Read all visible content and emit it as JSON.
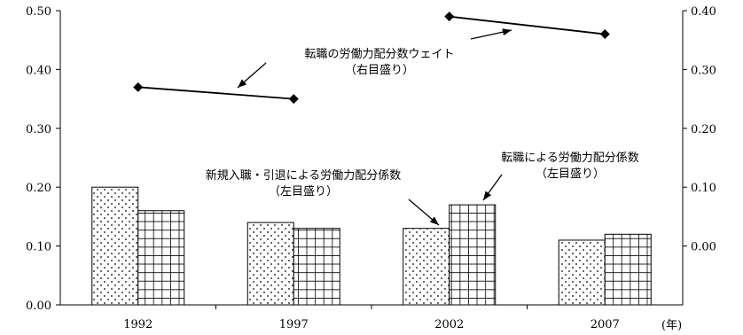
{
  "chart_data": {
    "type": "bar",
    "categories": [
      "1992",
      "1997",
      "2002",
      "2007"
    ],
    "x_unit_label": "(年)",
    "left_axis": {
      "ylim": [
        0,
        0.5
      ],
      "ticks": [
        "0.00",
        "0.10",
        "0.20",
        "0.30",
        "0.40",
        "0.50"
      ]
    },
    "right_axis": {
      "ylim": [
        -0.1,
        0.4
      ],
      "ticks": [
        "0.00",
        "0.10",
        "0.20",
        "0.30",
        "0.40"
      ]
    },
    "series": [
      {
        "name": "新規入職・引退による労働力配分係数",
        "axis": "left",
        "style": "bar",
        "pattern": "dots",
        "values": [
          0.2,
          0.14,
          0.13,
          0.11
        ]
      },
      {
        "name": "転職による労働力配分係数",
        "axis": "left",
        "style": "bar",
        "pattern": "grid",
        "values": [
          0.16,
          0.13,
          0.17,
          0.12
        ]
      },
      {
        "name": "転職の労働力配分数ウェイト",
        "axis": "right",
        "style": "line",
        "marker": "diamond",
        "segments": [
          {
            "categories": [
              "1992",
              "1997"
            ],
            "values": [
              0.27,
              0.25
            ]
          },
          {
            "categories": [
              "2002",
              "2007"
            ],
            "values": [
              0.39,
              0.36
            ]
          }
        ]
      }
    ],
    "annotations": [
      {
        "series": 0,
        "lines": [
          "新規入職・引退による労働力配分係数",
          "（左目盛り）"
        ]
      },
      {
        "series": 1,
        "lines": [
          "転職による労働力配分係数",
          "（左目盛り）"
        ]
      },
      {
        "series": 2,
        "lines": [
          "転職の労働力配分数ウェイト",
          "（右目盛り）"
        ]
      }
    ],
    "grid": false,
    "legend": "none",
    "colors": {
      "line": "#000000",
      "bar_fill": "#ffffff",
      "bar_stroke": "#000000"
    }
  }
}
